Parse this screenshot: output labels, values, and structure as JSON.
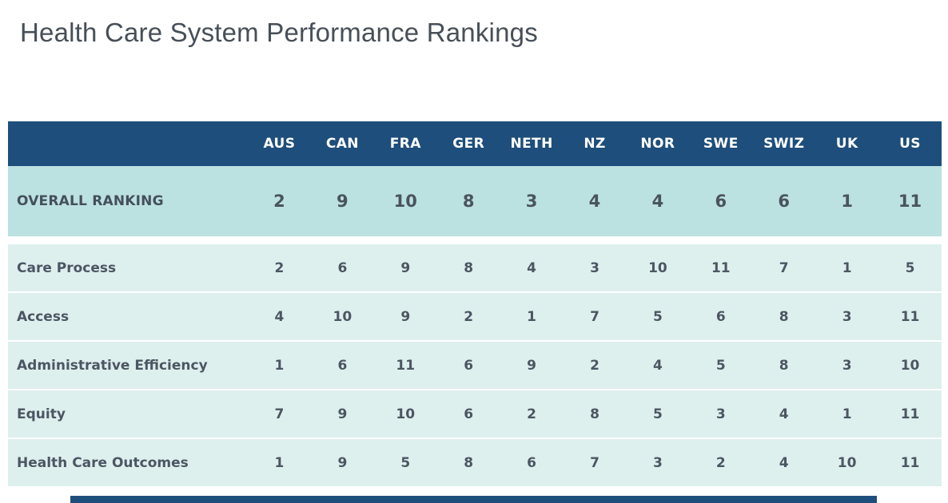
{
  "title": "Health Care System Performance Rankings",
  "chart_data": {
    "type": "table",
    "title": "Health Care System Performance Rankings",
    "columns": [
      "AUS",
      "CAN",
      "FRA",
      "GER",
      "NETH",
      "NZ",
      "NOR",
      "SWE",
      "SWIZ",
      "UK",
      "US"
    ],
    "overall_row": {
      "label": "OVERALL RANKING",
      "values": [
        2,
        9,
        10,
        8,
        3,
        4,
        4,
        6,
        6,
        1,
        11
      ]
    },
    "category_rows": [
      {
        "label": "Care Process",
        "values": [
          2,
          6,
          9,
          8,
          4,
          3,
          10,
          11,
          7,
          1,
          5
        ]
      },
      {
        "label": "Access",
        "values": [
          4,
          10,
          9,
          2,
          1,
          7,
          5,
          6,
          8,
          3,
          11
        ]
      },
      {
        "label": "Administrative Efficiency",
        "values": [
          1,
          6,
          11,
          6,
          9,
          2,
          4,
          5,
          8,
          3,
          10
        ]
      },
      {
        "label": "Equity",
        "values": [
          7,
          9,
          10,
          6,
          2,
          8,
          5,
          3,
          4,
          1,
          11
        ]
      },
      {
        "label": "Health Care Outcomes",
        "values": [
          1,
          9,
          5,
          8,
          6,
          7,
          3,
          2,
          4,
          10,
          11
        ]
      }
    ],
    "layout_hints": {
      "rank_scale": "1 = best, 11 = worst",
      "grid": "off",
      "legend": "none"
    }
  },
  "colors": {
    "header_bg": "#1e4e7b",
    "header_text": "#ffffff",
    "overall_row_bg": "#bce1e1",
    "category_row_bg": "#def0ee",
    "title_text": "#474f58",
    "cell_text": "#4c5663",
    "bottom_partial_bar": "#1e4e7b"
  },
  "bottom_partial_bar": {
    "description": "top edge of next table header cut off at screenshot bottom"
  }
}
